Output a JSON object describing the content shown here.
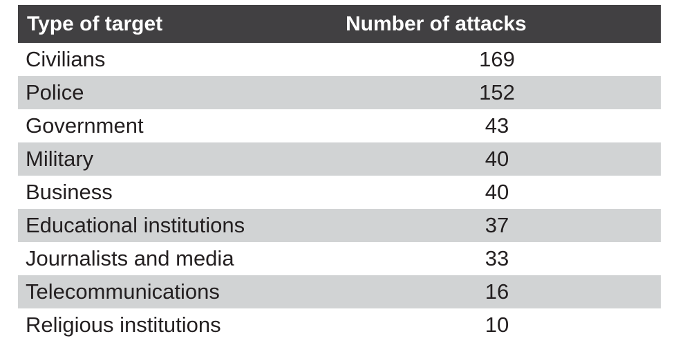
{
  "table": {
    "columns": [
      {
        "label": "Type of target"
      },
      {
        "label": "Number of attacks"
      }
    ],
    "rows": [
      {
        "target": "Civilians",
        "attacks": "169"
      },
      {
        "target": "Police",
        "attacks": "152"
      },
      {
        "target": "Government",
        "attacks": "43"
      },
      {
        "target": "Military",
        "attacks": "40"
      },
      {
        "target": "Business",
        "attacks": "40"
      },
      {
        "target": "Educational institutions",
        "attacks": "37"
      },
      {
        "target": "Journalists and media",
        "attacks": "33"
      },
      {
        "target": "Telecommunications",
        "attacks": "16"
      },
      {
        "target": "Religious institutions",
        "attacks": "10"
      }
    ]
  },
  "chart_data": {
    "type": "table",
    "title": "",
    "columns": [
      "Type of target",
      "Number of attacks"
    ],
    "categories": [
      "Civilians",
      "Police",
      "Government",
      "Military",
      "Business",
      "Educational institutions",
      "Journalists and media",
      "Telecommunications",
      "Religious institutions"
    ],
    "values": [
      169,
      152,
      43,
      40,
      40,
      37,
      33,
      16,
      10
    ]
  },
  "colors": {
    "header_bg": "#414042",
    "header_text": "#ffffff",
    "row_bg": "#ffffff",
    "row_alt_bg": "#d1d3d4",
    "body_text": "#231f20"
  }
}
